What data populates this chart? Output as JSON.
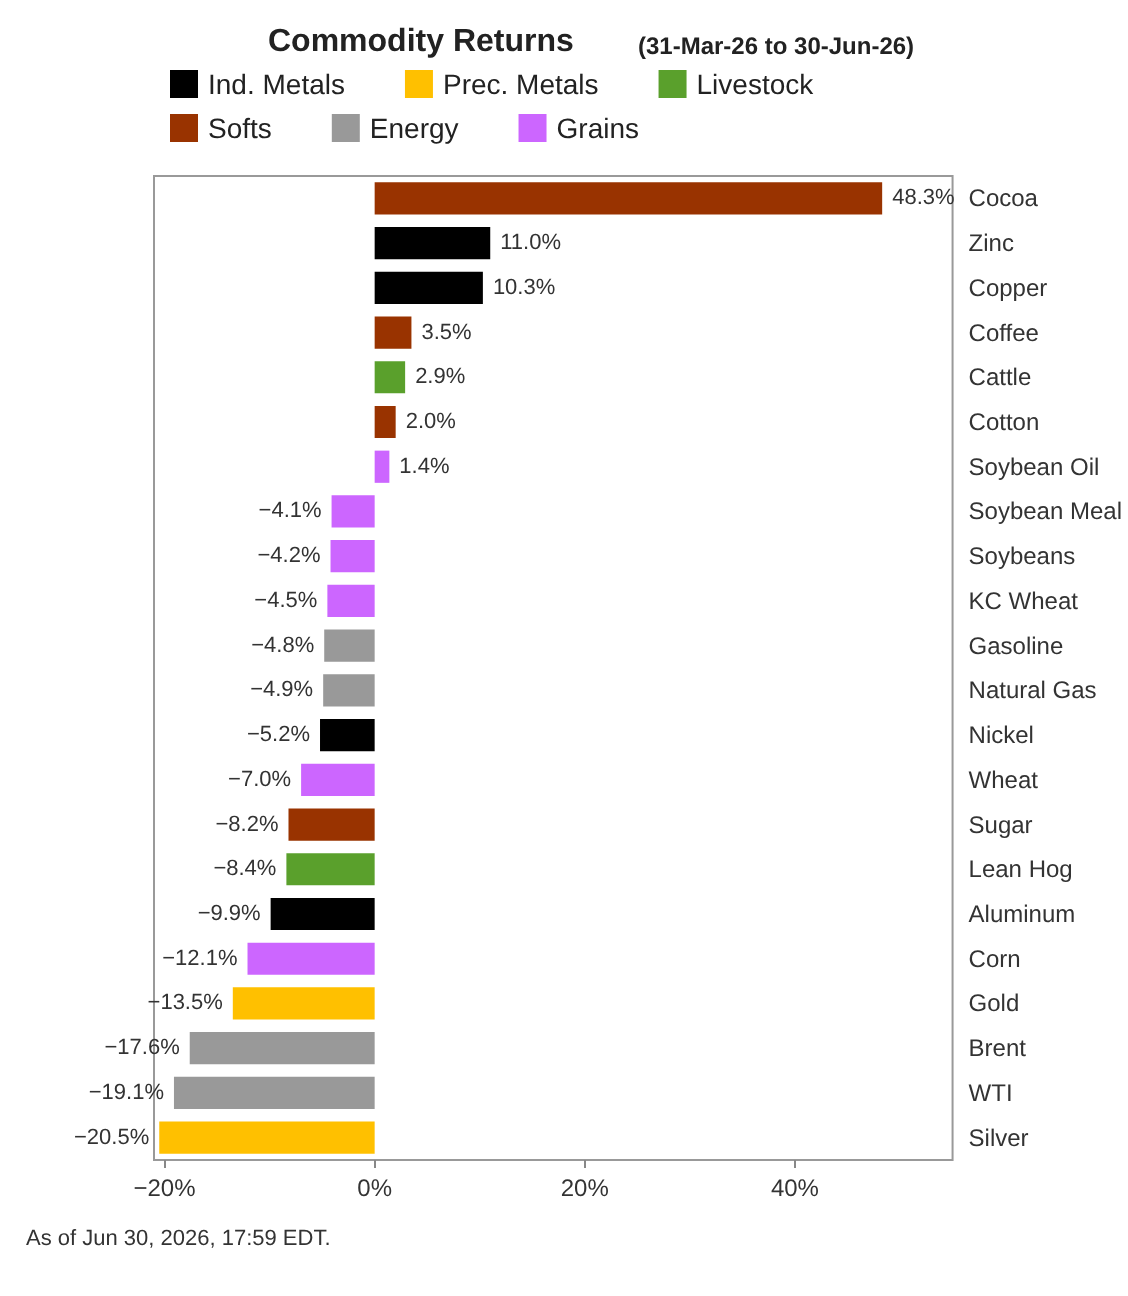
{
  "chart_data": {
    "type": "bar",
    "orientation": "horizontal",
    "stacked": true,
    "title": "Commodity Returns",
    "subtitle": "(31-Mar-26 to 30-Jun-26)",
    "annotations": [
      "As of Jun 30, 2026, 17:59 EDT."
    ],
    "legend": "top",
    "grid": false,
    "categories": [
      "Cocoa",
      "Zinc",
      "Copper",
      "Coffee",
      "Cattle",
      "Cotton",
      "Soybean Oil",
      "Soybean Meal",
      "Soybeans",
      "KC Wheat",
      "Gasoline",
      "Natural Gas",
      "Nickel",
      "Wheat",
      "Sugar",
      "Lean Hog",
      "Aluminum",
      "Corn",
      "Gold",
      "Brent",
      "WTI",
      "Silver"
    ],
    "xlim": [
      -21,
      55
    ],
    "xticks": [
      {
        "value": -20,
        "label": "−20%"
      },
      {
        "value": 0,
        "label": "0%"
      },
      {
        "value": 20,
        "label": "20%"
      },
      {
        "value": 40,
        "label": "40%"
      }
    ],
    "series": [
      {
        "name": "Ind. Metals",
        "color": "#000000",
        "values": [
          null,
          11.0,
          10.3,
          null,
          null,
          null,
          null,
          null,
          null,
          null,
          null,
          null,
          -5.2,
          null,
          null,
          null,
          -9.9,
          null,
          null,
          null,
          null,
          null
        ],
        "value_labels": [
          null,
          "11.0%",
          "10.3%",
          null,
          null,
          null,
          null,
          null,
          null,
          null,
          null,
          null,
          "−5.2%",
          null,
          null,
          null,
          "−9.9%",
          null,
          null,
          null,
          null,
          null
        ]
      },
      {
        "name": "Prec. Metals",
        "color": "#ffc000",
        "values": [
          null,
          null,
          null,
          null,
          null,
          null,
          null,
          null,
          null,
          null,
          null,
          null,
          null,
          null,
          null,
          null,
          null,
          null,
          -13.5,
          null,
          null,
          -20.5
        ],
        "value_labels": [
          null,
          null,
          null,
          null,
          null,
          null,
          null,
          null,
          null,
          null,
          null,
          null,
          null,
          null,
          null,
          null,
          null,
          null,
          "−13.5%",
          null,
          null,
          "−20.5%"
        ]
      },
      {
        "name": "Livestock",
        "color": "#5aa02c",
        "values": [
          null,
          null,
          null,
          null,
          2.9,
          null,
          null,
          null,
          null,
          null,
          null,
          null,
          null,
          null,
          null,
          -8.4,
          null,
          null,
          null,
          null,
          null,
          null
        ],
        "value_labels": [
          null,
          null,
          null,
          null,
          "2.9%",
          null,
          null,
          null,
          null,
          null,
          null,
          null,
          null,
          null,
          null,
          "−8.4%",
          null,
          null,
          null,
          null,
          null,
          null
        ]
      },
      {
        "name": "Softs",
        "color": "#993300",
        "values": [
          48.3,
          null,
          null,
          3.5,
          null,
          2.0,
          null,
          null,
          null,
          null,
          null,
          null,
          null,
          null,
          -8.2,
          null,
          null,
          null,
          null,
          null,
          null,
          null
        ],
        "value_labels": [
          "48.3%",
          null,
          null,
          "3.5%",
          null,
          "2.0%",
          null,
          null,
          null,
          null,
          null,
          null,
          null,
          null,
          "−8.2%",
          null,
          null,
          null,
          null,
          null,
          null,
          null
        ]
      },
      {
        "name": "Energy",
        "color": "#999999",
        "values": [
          null,
          null,
          null,
          null,
          null,
          null,
          null,
          null,
          null,
          null,
          -4.8,
          -4.9,
          null,
          null,
          null,
          null,
          null,
          null,
          null,
          -17.6,
          -19.1,
          null
        ],
        "value_labels": [
          null,
          null,
          null,
          null,
          null,
          null,
          null,
          null,
          null,
          null,
          "−4.8%",
          "−4.9%",
          null,
          null,
          null,
          null,
          null,
          null,
          null,
          "−17.6%",
          "−19.1%",
          null
        ]
      },
      {
        "name": "Grains",
        "color": "#cc66ff",
        "values": [
          null,
          null,
          null,
          null,
          null,
          null,
          1.4,
          -4.1,
          -4.2,
          -4.5,
          null,
          null,
          null,
          -7.0,
          null,
          null,
          null,
          -12.1,
          null,
          null,
          null,
          null
        ],
        "value_labels": [
          null,
          null,
          null,
          null,
          null,
          null,
          "1.4%",
          "−4.1%",
          "−4.2%",
          "−4.5%",
          null,
          null,
          null,
          "−7.0%",
          null,
          null,
          null,
          "−12.1%",
          null,
          null,
          null,
          null
        ]
      }
    ]
  }
}
